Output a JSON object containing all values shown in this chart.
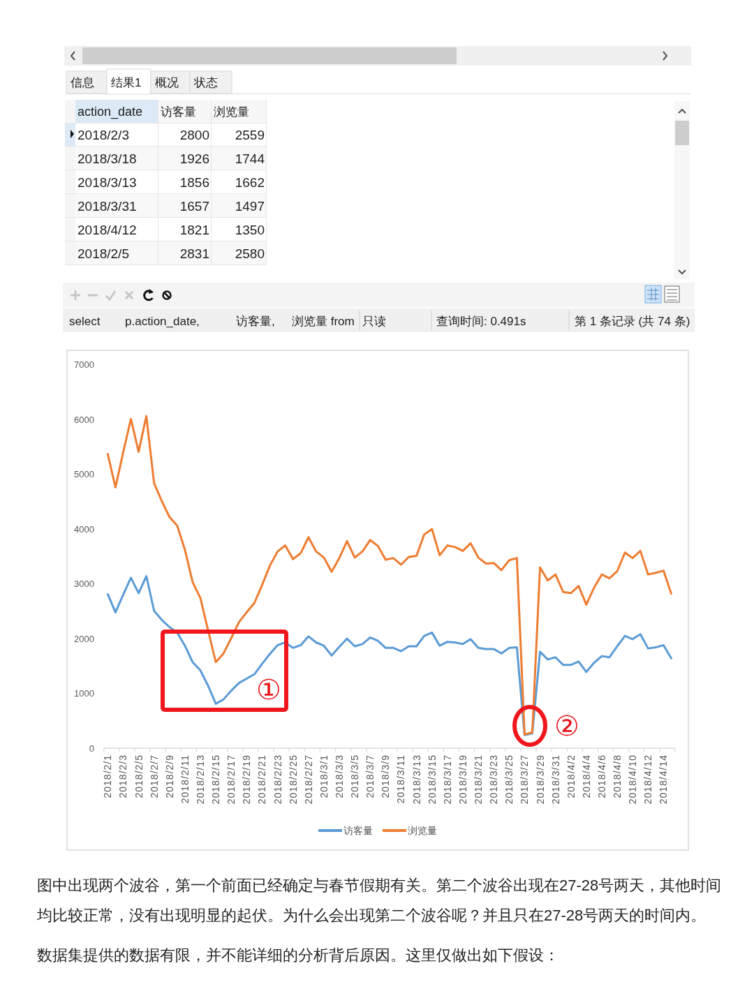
{
  "chart_data": [
    {
      "type": "other",
      "xlabel": "action_date",
      "categories": [
        "2018/2/3",
        "2018/3/18",
        "2018/3/13",
        "2018/3/31",
        "2018/4/12",
        "2018/2/5"
      ],
      "series": [
        {
          "name": "访客量",
          "values": [
            2800,
            1926,
            1856,
            1657,
            1821,
            2831
          ]
        },
        {
          "name": "浏览量",
          "values": [
            2559,
            1744,
            1662,
            1497,
            1350,
            2580
          ]
        }
      ],
      "data_labels": true,
      "annotations": [
        "信息",
        "结果1",
        "概况",
        "状态",
        "select",
        "p.action_date,",
        "访客量,",
        "浏览量 from",
        "只读",
        "查询时间: 0.491s",
        "第 1 条记录 (共 74 条)"
      ]
    },
    {
      "type": "line",
      "categories": [
        "2018/2/1",
        null,
        "2018/2/3",
        null,
        "2018/2/5",
        null,
        "2018/2/7",
        null,
        "2018/2/9",
        null,
        "2018/2/11",
        null,
        "2018/2/13",
        null,
        "2018/2/15",
        null,
        "2018/2/17",
        null,
        "2018/2/19",
        null,
        "2018/2/21",
        null,
        "2018/2/23",
        null,
        "2018/2/25",
        null,
        "2018/2/27",
        null,
        "2018/3/1",
        null,
        "2018/3/3",
        null,
        "2018/3/5",
        null,
        "2018/3/7",
        null,
        "2018/3/9",
        null,
        "2018/3/11",
        null,
        "2018/3/13",
        null,
        "2018/3/15",
        null,
        "2018/3/17",
        null,
        "2018/3/19",
        null,
        "2018/3/21",
        null,
        "2018/3/23",
        null,
        "2018/3/25",
        null,
        "2018/3/27",
        null,
        "2018/3/29",
        null,
        "2018/3/31",
        null,
        "2018/4/2",
        null,
        "2018/4/4",
        null,
        "2018/4/6",
        null,
        "2018/4/8",
        null,
        "2018/4/10",
        null,
        "2018/4/12",
        null,
        "2018/4/14",
        null
      ],
      "series": [
        {
          "name": "访客量",
          "color": "#5b9bd5",
          "values": [
            2810,
            2480,
            2800,
            3110,
            2830,
            3140,
            2510,
            2340,
            2210,
            2110,
            1870,
            1570,
            1420,
            1140,
            810,
            890,
            1050,
            1190,
            1270,
            1350,
            1540,
            1720,
            1880,
            1930,
            1830,
            1880,
            2040,
            1930,
            1870,
            1690,
            1850,
            2000,
            1860,
            1900,
            2020,
            1960,
            1830,
            1830,
            1770,
            1860,
            1860,
            2050,
            2110,
            1870,
            1940,
            1930,
            1900,
            1990,
            1830,
            1810,
            1810,
            1730,
            1830,
            1840,
            240,
            270,
            1760,
            1620,
            1660,
            1520,
            1520,
            1580,
            1390,
            1560,
            1680,
            1660,
            1860,
            2050,
            1990,
            2080,
            1820,
            1840,
            1880,
            1640
          ]
        },
        {
          "name": "浏览量",
          "color": "#ed7d31",
          "values": [
            5370,
            4760,
            5400,
            6010,
            5410,
            6060,
            4840,
            4510,
            4220,
            4060,
            3620,
            3030,
            2740,
            2150,
            1570,
            1730,
            2010,
            2300,
            2480,
            2650,
            2980,
            3330,
            3590,
            3700,
            3450,
            3560,
            3850,
            3590,
            3480,
            3220,
            3470,
            3780,
            3480,
            3590,
            3800,
            3690,
            3440,
            3470,
            3350,
            3490,
            3510,
            3900,
            4000,
            3520,
            3700,
            3670,
            3600,
            3740,
            3480,
            3370,
            3380,
            3250,
            3430,
            3470,
            250,
            290,
            3300,
            3060,
            3170,
            2850,
            2830,
            2960,
            2620,
            2930,
            3170,
            3100,
            3230,
            3570,
            3470,
            3600,
            3170,
            3200,
            3240,
            2820
          ]
        }
      ],
      "ylim": [
        0,
        7000
      ],
      "yticks": [
        0,
        1000,
        2000,
        3000,
        4000,
        5000,
        6000,
        7000
      ],
      "legend": "bottom",
      "annotations": [
        "①",
        "②",
        "图中出现两个波谷，第一个前面已经确定与春节假期有关。第二个波谷出现在27-28号两天，其他时间均比较正常，没有出现明显的起伏。为什么会出现第二个波谷呢？并且只在27-28号两天的时间内。",
        "数据集提供的数据有限，并不能详细的分析背后原因。这里仅做出如下假设："
      ]
    }
  ]
}
